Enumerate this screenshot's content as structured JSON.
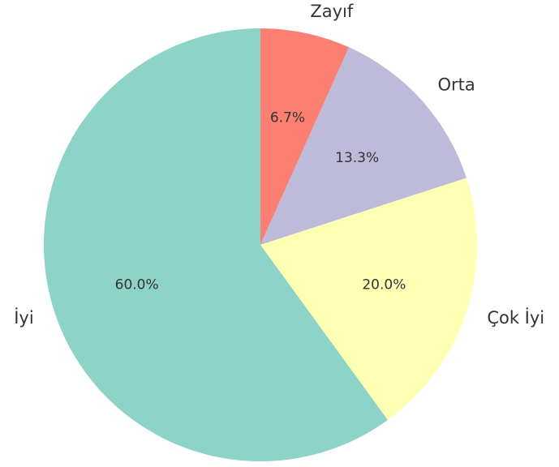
{
  "chart_data": {
    "type": "pie",
    "categories": [
      "Zayıf",
      "Orta",
      "Çok İyi",
      "İyi"
    ],
    "values": [
      6.7,
      13.3,
      20.0,
      60.0
    ],
    "value_labels": [
      "6.7%",
      "13.3%",
      "20.0%",
      "60.0%"
    ],
    "colors": [
      "#fb8072",
      "#bebada",
      "#ffffb3",
      "#8dd3c7"
    ]
  }
}
